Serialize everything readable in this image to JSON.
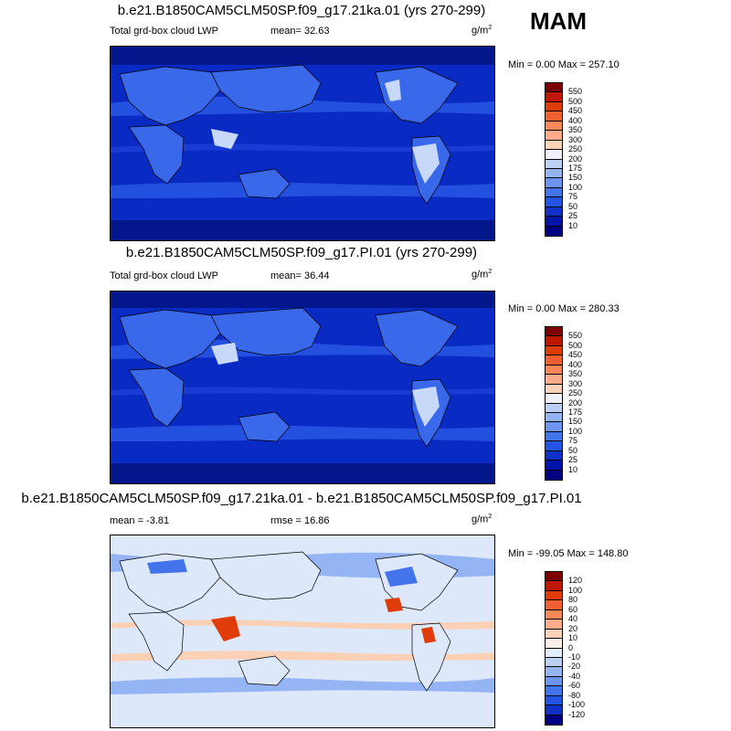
{
  "season": "MAM",
  "panels": [
    {
      "title": "b.e21.B1850CAM5CLM50SP.f09_g17.21ka.01 (yrs 270-299)",
      "variable": "Total grd-box cloud LWP",
      "mean": "mean=  32.63",
      "unit": "g/m",
      "unit_sup": "2",
      "minmax": "Min =   0.00 Max = 257.10",
      "levels": [
        "550",
        "500",
        "450",
        "400",
        "350",
        "300",
        "250",
        "200",
        "175",
        "150",
        "100",
        "75",
        "50",
        "25",
        "10"
      ],
      "colors": [
        "#7d0000",
        "#c01800",
        "#e03c0a",
        "#f06030",
        "#f88858",
        "#fcac88",
        "#fdd2b8",
        "#f0f0f8",
        "#bcd0f4",
        "#94b4f4",
        "#6c94f0",
        "#4474ec",
        "#2454e4",
        "#1030c8",
        "#0014a8",
        "#000080"
      ]
    },
    {
      "title": "b.e21.B1850CAM5CLM50SP.f09_g17.PI.01 (yrs 270-299)",
      "variable": "Total grd-box cloud LWP",
      "mean": "mean=  36.44",
      "unit": "g/m",
      "unit_sup": "2",
      "minmax": "Min =   0.00 Max = 280.33",
      "levels": [
        "550",
        "500",
        "450",
        "400",
        "350",
        "300",
        "250",
        "200",
        "175",
        "150",
        "100",
        "75",
        "50",
        "25",
        "10"
      ],
      "colors": [
        "#7d0000",
        "#c01800",
        "#e03c0a",
        "#f06030",
        "#f88858",
        "#fcac88",
        "#fdd2b8",
        "#f0f0f8",
        "#bcd0f4",
        "#94b4f4",
        "#6c94f0",
        "#4474ec",
        "#2454e4",
        "#1030c8",
        "#0014a8",
        "#000080"
      ]
    },
    {
      "title": "b.e21.B1850CAM5CLM50SP.f09_g17.21ka.01 - b.e21.B1850CAM5CLM50SP.f09_g17.PI.01",
      "mean": "mean =  -3.81",
      "rmse": "rmse =  16.86",
      "unit": "g/m",
      "unit_sup": "2",
      "minmax": "Min = -99.05 Max = 148.80",
      "levels": [
        "120",
        "100",
        "80",
        "60",
        "40",
        "20",
        "10",
        "0",
        "-10",
        "-20",
        "-40",
        "-60",
        "-80",
        "-100",
        "-120"
      ],
      "colors": [
        "#7d0000",
        "#c01800",
        "#e03c0a",
        "#f06030",
        "#f88858",
        "#fcac88",
        "#fdd2b8",
        "#fdf0e8",
        "#e4eefc",
        "#bcd0f4",
        "#94b4f4",
        "#6c94f0",
        "#4474ec",
        "#2454e4",
        "#1030c8",
        "#000080"
      ]
    }
  ]
}
